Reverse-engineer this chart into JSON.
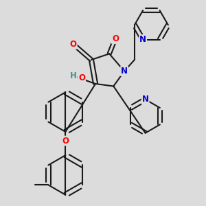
{
  "bg_color": "#dcdcdc",
  "bond_color": "#1a1a1a",
  "bond_width": 1.5,
  "atom_colors": {
    "O": "#ff0000",
    "N": "#0000cc",
    "H": "#4a9090",
    "C": "#1a1a1a"
  },
  "font_size": 8.5
}
